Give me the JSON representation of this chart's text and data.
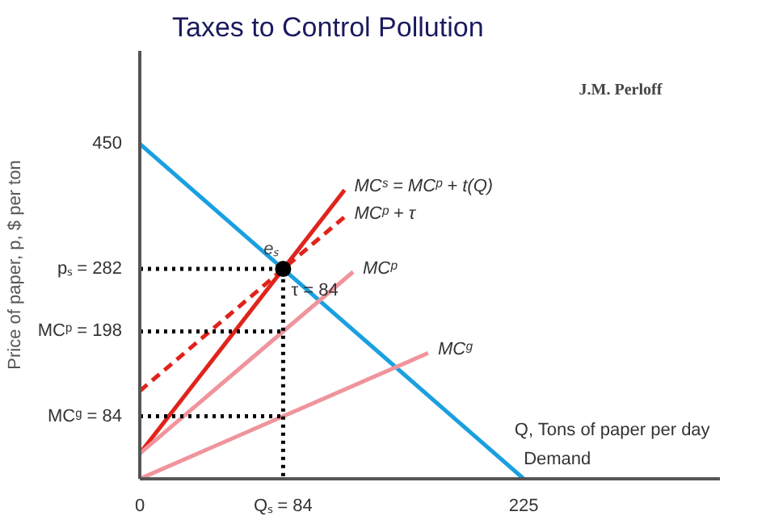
{
  "chart_data": {
    "type": "line",
    "title": "Taxes to Control Pollution",
    "xlabel": "Q, Tons of paper per day",
    "ylabel": "Price of paper, p, $ per ton",
    "annotations": [
      "J.M. Perloff",
      {
        "text": "τ = 84",
        "x": 84,
        "y": 240
      }
    ],
    "xlim": [
      0,
      340
    ],
    "ylim": [
      0,
      575
    ],
    "xticks": [
      0,
      {
        "value": 84,
        "label": "Qₛ = 84"
      },
      225
    ],
    "yticks": [
      {
        "value": 84,
        "label": "MCᵍ = 84"
      },
      {
        "value": 198,
        "label": "MCᵖ = 198"
      },
      {
        "value": 282,
        "label": "pₛ = 282"
      },
      450
    ],
    "grid": false,
    "marker": "none",
    "series": [
      {
        "name": "Demand",
        "color": "#1aa0e0",
        "x": [
          0,
          225
        ],
        "values": [
          450,
          0
        ]
      },
      {
        "name": "MCˢ = MCᵖ + t(Q)",
        "color": "#e0231b",
        "x": [
          0,
          120
        ],
        "values": [
          34,
          388
        ]
      },
      {
        "name": "MCᵖ + τ",
        "color": "#e0231b",
        "line_style": "dashed",
        "x": [
          0,
          120
        ],
        "values": [
          118,
          352
        ]
      },
      {
        "name": "MCᵖ",
        "color": "#f0949c",
        "x": [
          0,
          125
        ],
        "values": [
          34,
          278
        ]
      },
      {
        "name": "MCᵍ",
        "color": "#f0949c",
        "x": [
          0,
          169
        ],
        "values": [
          0,
          169
        ]
      },
      {
        "color": "#000000",
        "line_style": "dotted",
        "x": [
          0,
          84,
          84
        ],
        "values": [
          282,
          282,
          0
        ]
      },
      {
        "color": "#000000",
        "line_style": "dotted",
        "x": [
          0,
          84
        ],
        "values": [
          198,
          198
        ]
      },
      {
        "color": "#000000",
        "line_style": "dotted",
        "x": [
          0,
          84
        ],
        "values": [
          84,
          84
        ]
      },
      {
        "name": "eₛ",
        "type": "scatter",
        "marker": "circle",
        "color": "#000000",
        "x": [
          84
        ],
        "values": [
          282
        ]
      }
    ]
  }
}
